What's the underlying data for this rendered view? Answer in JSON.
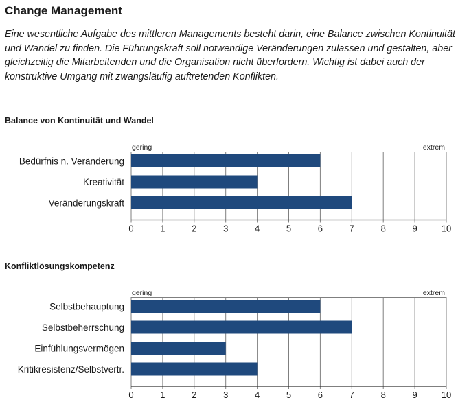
{
  "page": {
    "title": "Change Management",
    "intro": "Eine wesentliche Aufgabe des mittleren Managements besteht darin, eine Balance zwischen Kontinuität und Wandel zu finden. Die Führungskraft soll notwendige Veränderungen zulassen und gestalten, aber gleichzeitig die Mitarbeitenden und die Organisation nicht überfordern. Wichtig ist dabei auch der konstruktive Umgang mit zwangsläufig auftretenden Konflikten."
  },
  "colors": {
    "bar": "#1f497d",
    "grid": "#7f7f7f"
  },
  "chart_data": [
    {
      "type": "bar",
      "orientation": "horizontal",
      "title": "Balance von Kontinuität und Wandel",
      "scale_low_label": "gering",
      "scale_high_label": "extrem",
      "categories": [
        "Bedürfnis n. Veränderung",
        "Kreativität",
        "Veränderungskraft"
      ],
      "values": [
        6,
        4,
        7
      ],
      "xlim": [
        0,
        10
      ],
      "xticks": [
        "0",
        "1",
        "2",
        "3",
        "4",
        "5",
        "6",
        "7",
        "8",
        "9",
        "10"
      ],
      "grid": true
    },
    {
      "type": "bar",
      "orientation": "horizontal",
      "title": "Konfliktlösungskompetenz",
      "scale_low_label": "gering",
      "scale_high_label": "extrem",
      "categories": [
        "Selbstbehauptung",
        "Selbstbeherrschung",
        "Einfühlungsvermögen",
        "Kritikresistenz/Selbstvertr."
      ],
      "values": [
        6,
        7,
        3,
        4
      ],
      "xlim": [
        0,
        10
      ],
      "xticks": [
        "0",
        "1",
        "2",
        "3",
        "4",
        "5",
        "6",
        "7",
        "8",
        "9",
        "10"
      ],
      "grid": true
    }
  ]
}
